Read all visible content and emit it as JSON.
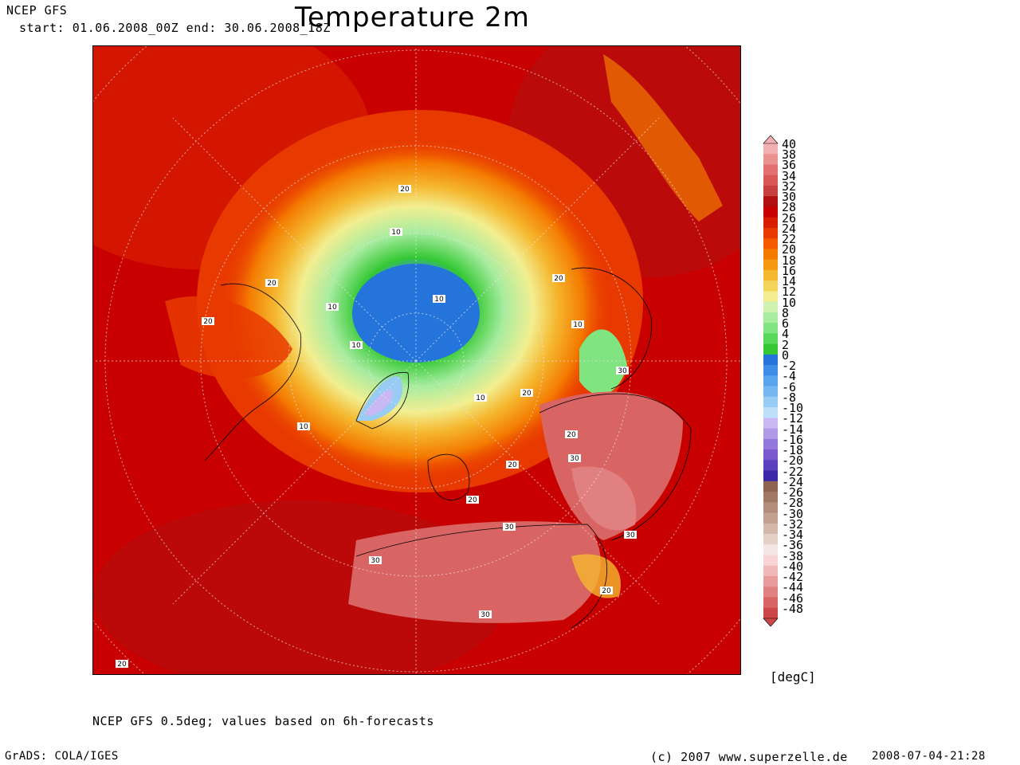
{
  "header": {
    "model": "NCEP GFS",
    "period": "start: 01.06.2008_00Z end: 30.06.2008_18Z",
    "title": "Temperature 2m"
  },
  "map": {
    "projection": "polar stereographic, northern hemisphere",
    "contour_labels": [
      "20",
      "10",
      "20",
      "20",
      "10",
      "10",
      "10",
      "20",
      "10",
      "10",
      "20",
      "10",
      "30",
      "20",
      "30",
      "20",
      "20",
      "30",
      "30",
      "30",
      "30",
      "20",
      "20"
    ]
  },
  "legend": {
    "unit": "[degC]",
    "levels": [
      "40",
      "38",
      "36",
      "34",
      "32",
      "30",
      "28",
      "26",
      "24",
      "22",
      "20",
      "18",
      "16",
      "14",
      "12",
      "10",
      "8",
      "6",
      "4",
      "2",
      "0",
      "-2",
      "-4",
      "-6",
      "-8",
      "-10",
      "-12",
      "-14",
      "-16",
      "-18",
      "-20",
      "-22",
      "-24",
      "-26",
      "-28",
      "-30",
      "-32",
      "-34",
      "-36",
      "-38",
      "-40",
      "-42",
      "-44",
      "-46",
      "-48"
    ],
    "colors": [
      "#f4b0b0",
      "#ec9090",
      "#e27070",
      "#d85858",
      "#c84040",
      "#b01010",
      "#c80000",
      "#d81e00",
      "#e83a00",
      "#f55a00",
      "#f47a00",
      "#f59a10",
      "#f5b830",
      "#f5d45a",
      "#f2ee90",
      "#d0f2b0",
      "#a8eca0",
      "#80e480",
      "#58d858",
      "#34c834",
      "#2474dc",
      "#3e8ee8",
      "#5aa4ee",
      "#78b8f2",
      "#98ccf4",
      "#bce0f8",
      "#c8b8f4",
      "#b09ae8",
      "#9478dc",
      "#7858cc",
      "#5a40bc",
      "#3c28a8",
      "#8c6450",
      "#a07864",
      "#b48c7c",
      "#c4a090",
      "#d4b8aa",
      "#e4d0c6",
      "#f4e6e2",
      "#f8d4d4",
      "#f0b8b8",
      "#e89c9c",
      "#e08080",
      "#d86464",
      "#cc4848"
    ]
  },
  "footer": {
    "note": "NCEP GFS 0.5deg; values based on 6h-forecasts",
    "software": "GrADS: COLA/IGES",
    "copyright": "(c) 2007 www.superzelle.de",
    "timestamp": "2008-07-04-21:28"
  }
}
